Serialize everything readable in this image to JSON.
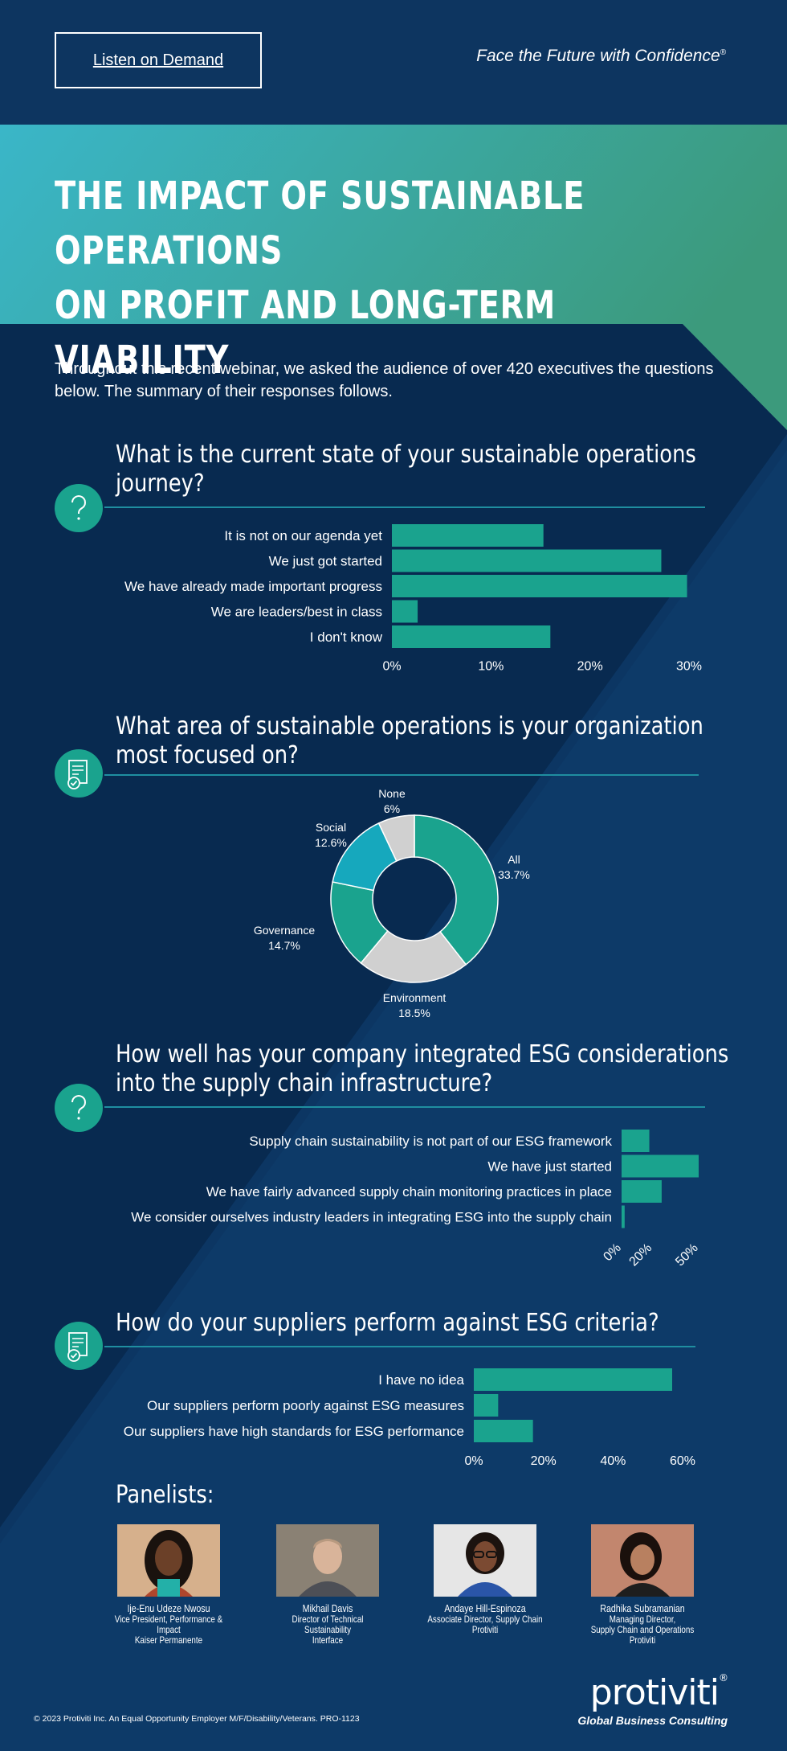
{
  "header": {
    "listen_button": "Listen on Demand",
    "tagline": "Face the Future with Confidence",
    "tagline_mark": "®"
  },
  "title_lines": [
    "THE IMPACT OF SUSTAINABLE OPERATIONS",
    "ON PROFIT AND LONG-TERM VIABILITY"
  ],
  "intro": "Throughout this recent webinar, we asked the audience of over 420 executives the questions below.  The summary of their responses follows.",
  "colors": {
    "bar": "#1aa38e",
    "background": "#082a50",
    "teal_light": "#16a8bd",
    "gray": "#d0d0d0",
    "line": "#1f8ea0"
  },
  "chart_data": [
    {
      "type": "bar",
      "orientation": "horizontal",
      "title": "What is the current state of your sustainable operations journey?",
      "categories": [
        "It is not on our agenda yet",
        "We just got started",
        "We have already made important progress",
        "We are leaders/best in class",
        "I don't know"
      ],
      "values": [
        15.3,
        27.2,
        29.8,
        2.6,
        16.0
      ],
      "xlim": [
        0,
        30
      ],
      "ticks": [
        "0%",
        "10%",
        "20%",
        "30%"
      ],
      "icon": "question-icon"
    },
    {
      "type": "pie",
      "title": "What area of sustainable operations is your organization most focused on?",
      "slices": [
        {
          "label": "All",
          "value": 33.7,
          "display": "33.7%",
          "color": "#1aa38e"
        },
        {
          "label": "Environment",
          "value": 18.5,
          "display": "18.5%",
          "color": "#d0d0d0"
        },
        {
          "label": "Governance",
          "value": 14.7,
          "display": "14.7%",
          "color": "#1aa38e"
        },
        {
          "label": "Social",
          "value": 12.6,
          "display": "12.6%",
          "color": "#16a8bd"
        },
        {
          "label": "None",
          "value": 6.0,
          "display": "6%",
          "color": "#d0d0d0"
        }
      ],
      "icon": "checklist-icon"
    },
    {
      "type": "bar",
      "orientation": "horizontal",
      "title": "How well has your company integrated ESG considerations into the supply chain infrastructure?",
      "categories": [
        "Supply chain sustainability is not part of our ESG framework",
        "We have just started",
        "We have fairly advanced supply chain monitoring practices in place",
        "We consider ourselves industry leaders in integrating ESG into the supply chain"
      ],
      "values": [
        18,
        50,
        26,
        2
      ],
      "xlim": [
        0,
        50
      ],
      "ticks": [
        "0%",
        "20%",
        "50%"
      ],
      "tick_values": [
        0,
        20,
        50
      ],
      "icon": "question-icon"
    },
    {
      "type": "bar",
      "orientation": "horizontal",
      "title": "How do your suppliers perform against ESG criteria?",
      "categories": [
        "I have no idea",
        "Our suppliers perform poorly against ESG measures",
        "Our suppliers have high standards for ESG performance"
      ],
      "values": [
        57,
        7,
        17
      ],
      "xlim": [
        0,
        60
      ],
      "ticks": [
        "0%",
        "20%",
        "40%",
        "60%"
      ],
      "icon": "checklist-icon"
    }
  ],
  "panelists": {
    "title": "Panelists:",
    "people": [
      {
        "name": "Ije-Enu Udeze Nwosu",
        "role": [
          "Vice President, Performance &",
          "Impact",
          "Kaiser Permanente"
        ]
      },
      {
        "name": "Mikhail Davis",
        "role": [
          "Director of Technical",
          "Sustainability",
          "Interface"
        ]
      },
      {
        "name": "Andaye Hill-Espinoza",
        "role": [
          "Associate Director, Supply Chain",
          "Protiviti"
        ]
      },
      {
        "name": "Radhika Subramanian",
        "role": [
          "Managing Director,",
          "Supply Chain and Operations",
          "Protiviti"
        ]
      }
    ]
  },
  "footer": "© 2023 Protiviti Inc. An Equal Opportunity Employer M/F/Disability/Veterans. PRO-1123",
  "logo": {
    "name": "protiviti",
    "mark": "®",
    "subtitle": "Global Business Consulting"
  }
}
